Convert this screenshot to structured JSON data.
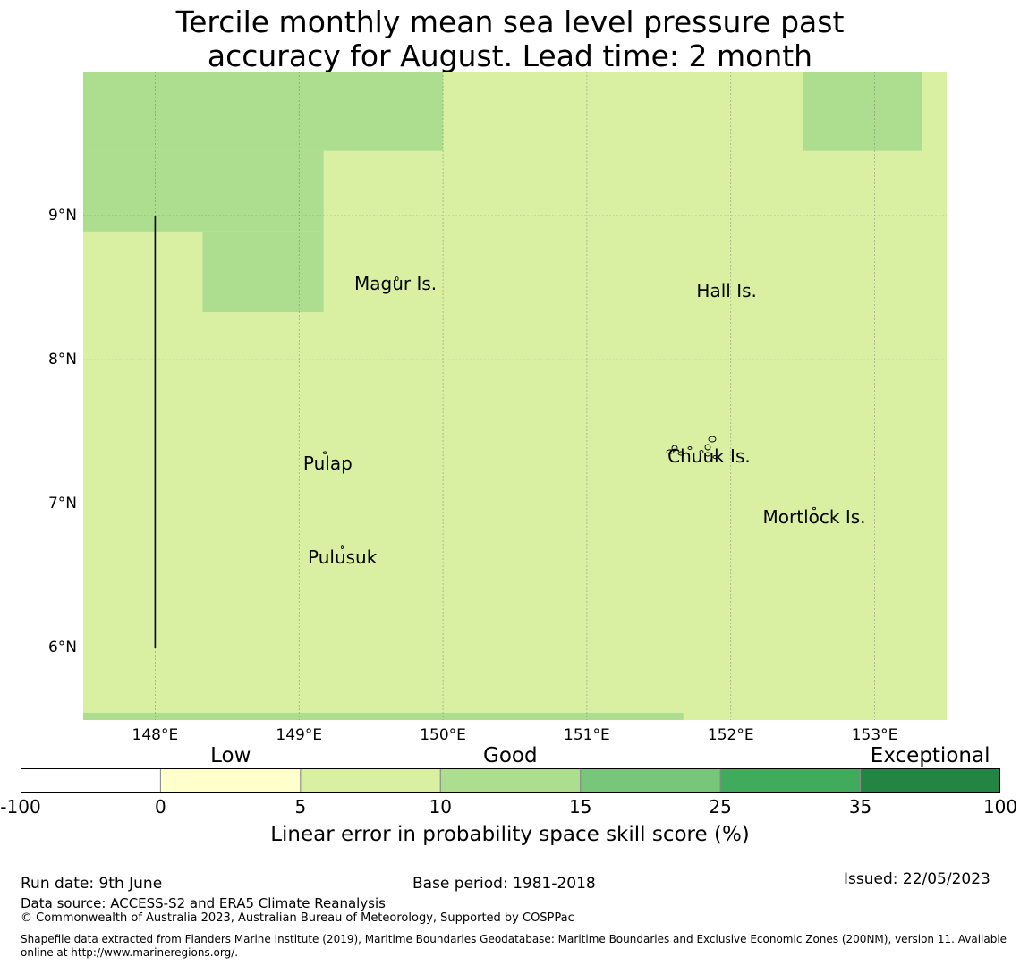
{
  "title_line1": "Tercile monthly mean sea level pressure past",
  "title_line2": "accuracy for August. Lead time: 2 month",
  "map": {
    "lon_range": [
      147.5,
      153.5
    ],
    "lat_range": [
      5.5,
      10.0
    ],
    "lat_ticks": [
      {
        "value": 9,
        "label": "9°N"
      },
      {
        "value": 8,
        "label": "8°N"
      },
      {
        "value": 7,
        "label": "7°N"
      },
      {
        "value": 6,
        "label": "6°N"
      }
    ],
    "lon_ticks": [
      {
        "value": 148,
        "label": "148°E"
      },
      {
        "value": 149,
        "label": "149°E"
      },
      {
        "value": 150,
        "label": "150°E"
      },
      {
        "value": 151,
        "label": "151°E"
      },
      {
        "value": 152,
        "label": "152°E"
      },
      {
        "value": 153,
        "label": "153°E"
      }
    ],
    "background_category": "5-10",
    "regions_10_15": [
      {
        "lon": [
          147.5,
          150.0
        ],
        "lat": [
          9.45,
          10.0
        ]
      },
      {
        "lon": [
          147.5,
          149.17
        ],
        "lat": [
          8.89,
          9.45
        ]
      },
      {
        "lon": [
          148.33,
          149.17
        ],
        "lat": [
          8.33,
          8.89
        ]
      },
      {
        "lon": [
          152.5,
          153.33
        ],
        "lat": [
          9.45,
          10.0
        ]
      },
      {
        "lon": [
          147.5,
          151.67
        ],
        "lat": [
          5.5,
          5.55
        ]
      }
    ],
    "boundary_line": {
      "lon": 148.0,
      "lat": [
        6.0,
        9.0
      ]
    },
    "places": [
      {
        "name": "Magur Is.",
        "lon": 149.67,
        "lat": 8.6
      },
      {
        "name": "Hall Is.",
        "lon": 151.97,
        "lat": 8.55
      },
      {
        "name": "Pulap",
        "lon": 149.2,
        "lat": 7.35
      },
      {
        "name": "Chuuk Is.",
        "lon": 151.85,
        "lat": 7.4
      },
      {
        "name": "Mortlock Is.",
        "lon": 152.58,
        "lat": 6.98
      },
      {
        "name": "Pulusuk",
        "lon": 149.3,
        "lat": 6.7
      }
    ]
  },
  "colorbar": {
    "categories": [
      {
        "text": "Low",
        "bin": 1
      },
      {
        "text": "Good",
        "bin": 3
      },
      {
        "text": "Exceptional",
        "bin": 6
      }
    ],
    "bins": [
      {
        "from": -100,
        "to": 0,
        "color": "#ffffff"
      },
      {
        "from": 0,
        "to": 5,
        "color": "#ffffcc"
      },
      {
        "from": 5,
        "to": 10,
        "color": "#d9f0a3"
      },
      {
        "from": 10,
        "to": 15,
        "color": "#addd8e"
      },
      {
        "from": 15,
        "to": 25,
        "color": "#78c679"
      },
      {
        "from": 25,
        "to": 35,
        "color": "#41ab5d"
      },
      {
        "from": 35,
        "to": 100,
        "color": "#238443"
      }
    ],
    "tick_labels": [
      "-100",
      "0",
      "5",
      "10",
      "15",
      "25",
      "35",
      "100"
    ],
    "caption": "Linear error in probability space skill score (%)"
  },
  "footer": {
    "run_date": "Run date: 9th June",
    "base_period": "Base period: 1981-2018",
    "issued": "Issued: 22/05/2023",
    "data_source": "Data source: ACCESS-S2 and ERA5 Climate Reanalysis",
    "copyright": "© Commonwealth of Australia 2023, Australian Bureau of Meteorology, Supported by COSPPac",
    "shapefile": "Shapefile data extracted from Flanders Marine Institute (2019), Maritime Boundaries Geodatabase: Maritime Boundaries and Exclusive Economic Zones (200NM), version 11. Available online at http://www.marineregions.org/."
  }
}
